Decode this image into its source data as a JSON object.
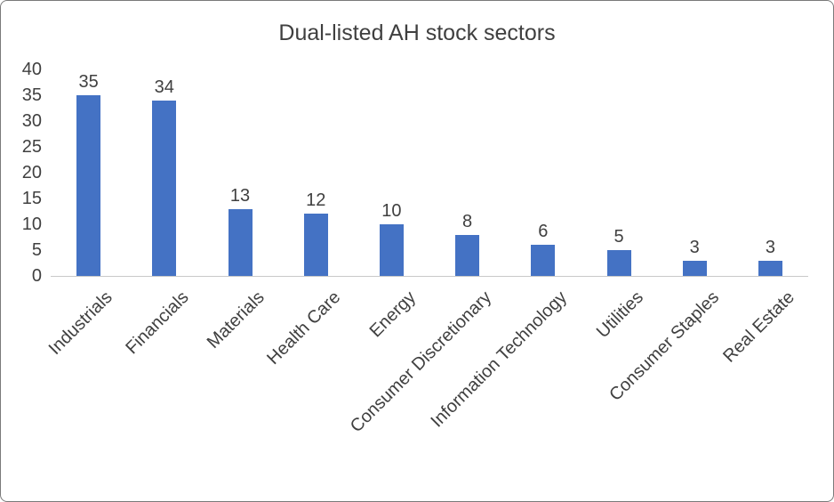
{
  "chart_data": {
    "type": "bar",
    "title": "Dual-listed AH stock sectors",
    "categories": [
      "Industrials",
      "Financials",
      "Materials",
      "Health Care",
      "Energy",
      "Consumer Discretionary",
      "Information Technology",
      "Utilities",
      "Consumer Staples",
      "Real Estate"
    ],
    "values": [
      35,
      34,
      13,
      12,
      10,
      8,
      6,
      5,
      3,
      3
    ],
    "xlabel": "",
    "ylabel": "",
    "ylim": [
      0,
      40
    ],
    "yticks": [
      0,
      5,
      10,
      15,
      20,
      25,
      30,
      35,
      40
    ],
    "grid": false,
    "legend": false,
    "data_labels": true,
    "bar_color": "#4472C4"
  },
  "colors": {
    "bar": "#4472C4",
    "text": "#404040",
    "axis_line": "#c9c9c9",
    "frame_border": "#7a7a7a",
    "background": "#ffffff"
  }
}
